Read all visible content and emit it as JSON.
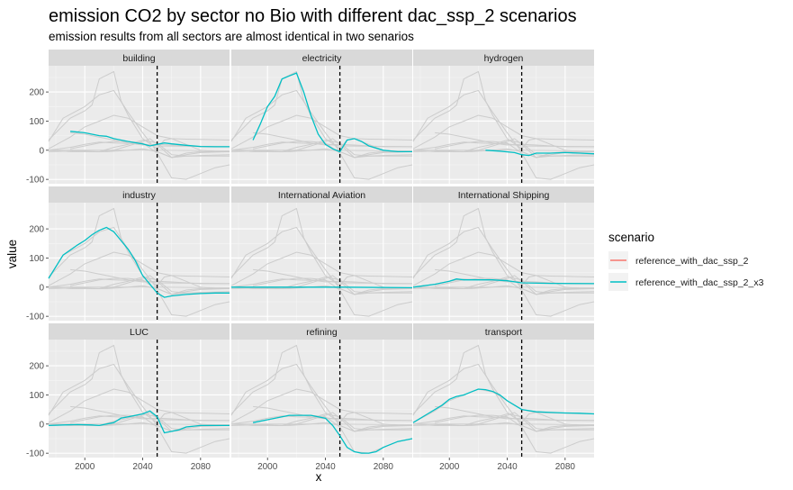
{
  "chart_data": {
    "type": "line",
    "title": "emission CO2 by sector no Bio with different dac_ssp_2 scenarios",
    "subtitle": "emission results from all sectors are almost identical in two senarios",
    "xlabel": "x",
    "ylabel": "value",
    "xlim": [
      1975,
      2100
    ],
    "ylim": [
      -115,
      290
    ],
    "x_ticks": [
      2000,
      2040,
      2080
    ],
    "y_ticks": [
      -100,
      0,
      100,
      200
    ],
    "vline_x": 2050,
    "legend": {
      "title": "scenario",
      "placement": "right",
      "entries": [
        {
          "name": "reference_with_dac_ssp_2",
          "color": "#F8766D"
        },
        {
          "name": "reference_with_dac_ssp_2_x3",
          "color": "#00BFC4"
        }
      ]
    },
    "background_color": "#cccccc",
    "background_lines": [
      [
        [
          1990,
          0
        ],
        [
          2005,
          -5
        ],
        [
          2015,
          -5
        ],
        [
          2030,
          0
        ],
        [
          2040,
          5
        ],
        [
          2050,
          -5
        ],
        [
          2060,
          -25
        ],
        [
          2070,
          -15
        ],
        [
          2080,
          -8
        ],
        [
          2100,
          -5
        ]
      ],
      [
        [
          1975,
          35
        ],
        [
          1990,
          110
        ],
        [
          2000,
          135
        ],
        [
          2005,
          155
        ],
        [
          2010,
          245
        ],
        [
          2020,
          270
        ],
        [
          2025,
          170
        ],
        [
          2030,
          120
        ],
        [
          2040,
          40
        ],
        [
          2050,
          5
        ],
        [
          2055,
          35
        ],
        [
          2060,
          40
        ],
        [
          2070,
          20
        ],
        [
          2080,
          0
        ],
        [
          2090,
          -5
        ],
        [
          2100,
          -5
        ]
      ],
      [
        [
          1975,
          0
        ],
        [
          1990,
          -5
        ],
        [
          2000,
          -5
        ],
        [
          2010,
          -5
        ],
        [
          2020,
          10
        ],
        [
          2030,
          20
        ],
        [
          2040,
          35
        ],
        [
          2050,
          25
        ],
        [
          2060,
          -15
        ],
        [
          2070,
          -20
        ],
        [
          2080,
          -18
        ],
        [
          2100,
          -15
        ]
      ],
      [
        [
          1975,
          30
        ],
        [
          1985,
          110
        ],
        [
          2000,
          150
        ],
        [
          2010,
          190
        ],
        [
          2020,
          205
        ],
        [
          2030,
          130
        ],
        [
          2040,
          60
        ],
        [
          2050,
          -5
        ],
        [
          2060,
          -25
        ],
        [
          2070,
          -20
        ],
        [
          2080,
          -20
        ],
        [
          2100,
          -20
        ]
      ],
      [
        [
          1975,
          0
        ],
        [
          2000,
          0
        ],
        [
          2050,
          0
        ],
        [
          2100,
          -2
        ]
      ],
      [
        [
          1975,
          0
        ],
        [
          1990,
          10
        ],
        [
          2000,
          20
        ],
        [
          2010,
          28
        ],
        [
          2020,
          25
        ],
        [
          2040,
          22
        ],
        [
          2050,
          15
        ],
        [
          2100,
          12
        ]
      ],
      [
        [
          1975,
          -5
        ],
        [
          2000,
          -2
        ],
        [
          2010,
          -5
        ],
        [
          2020,
          0
        ],
        [
          2030,
          15
        ],
        [
          2040,
          30
        ],
        [
          2045,
          40
        ],
        [
          2050,
          20
        ],
        [
          2060,
          -25
        ],
        [
          2070,
          -10
        ],
        [
          2080,
          -5
        ],
        [
          2100,
          -5
        ]
      ],
      [
        [
          1990,
          5
        ],
        [
          2000,
          15
        ],
        [
          2010,
          25
        ],
        [
          2020,
          30
        ],
        [
          2030,
          30
        ],
        [
          2040,
          25
        ],
        [
          2050,
          -10
        ],
        [
          2060,
          -95
        ],
        [
          2070,
          -100
        ],
        [
          2080,
          -80
        ],
        [
          2090,
          -60
        ],
        [
          2100,
          -50
        ]
      ],
      [
        [
          1975,
          5
        ],
        [
          1990,
          45
        ],
        [
          2000,
          80
        ],
        [
          2010,
          100
        ],
        [
          2020,
          120
        ],
        [
          2030,
          110
        ],
        [
          2040,
          80
        ],
        [
          2050,
          50
        ],
        [
          2060,
          40
        ],
        [
          2070,
          38
        ],
        [
          2080,
          37
        ],
        [
          2100,
          35
        ]
      ],
      [
        [
          1990,
          60
        ],
        [
          2000,
          55
        ],
        [
          2010,
          45
        ],
        [
          2020,
          35
        ],
        [
          2030,
          25
        ],
        [
          2040,
          18
        ],
        [
          2050,
          20
        ],
        [
          2060,
          18
        ],
        [
          2070,
          15
        ],
        [
          2080,
          12
        ],
        [
          2100,
          12
        ]
      ]
    ],
    "panels": [
      {
        "name": "building",
        "series": [
          {
            "name": "reference_with_dac_ssp_2_x3",
            "points": [
              [
                1990,
                65
              ],
              [
                2000,
                60
              ],
              [
                2005,
                55
              ],
              [
                2010,
                50
              ],
              [
                2015,
                48
              ],
              [
                2020,
                40
              ],
              [
                2030,
                30
              ],
              [
                2040,
                22
              ],
              [
                2045,
                15
              ],
              [
                2050,
                20
              ],
              [
                2055,
                25
              ],
              [
                2060,
                22
              ],
              [
                2070,
                17
              ],
              [
                2080,
                13
              ],
              [
                2090,
                12
              ],
              [
                2100,
                12
              ]
            ]
          }
        ]
      },
      {
        "name": "electricity",
        "series": [
          {
            "name": "reference_with_dac_ssp_2_x3",
            "points": [
              [
                1990,
                35
              ],
              [
                1995,
                90
              ],
              [
                2000,
                150
              ],
              [
                2005,
                185
              ],
              [
                2010,
                245
              ],
              [
                2015,
                255
              ],
              [
                2020,
                265
              ],
              [
                2025,
                200
              ],
              [
                2030,
                120
              ],
              [
                2035,
                55
              ],
              [
                2040,
                20
              ],
              [
                2045,
                5
              ],
              [
                2050,
                -5
              ],
              [
                2055,
                35
              ],
              [
                2060,
                40
              ],
              [
                2065,
                30
              ],
              [
                2070,
                15
              ],
              [
                2080,
                0
              ],
              [
                2090,
                -5
              ],
              [
                2100,
                -5
              ]
            ]
          }
        ]
      },
      {
        "name": "hydrogen",
        "series": [
          {
            "name": "reference_with_dac_ssp_2_x3",
            "points": [
              [
                2025,
                0
              ],
              [
                2035,
                -3
              ],
              [
                2045,
                -8
              ],
              [
                2050,
                -15
              ],
              [
                2055,
                -18
              ],
              [
                2060,
                -10
              ],
              [
                2070,
                -10
              ],
              [
                2080,
                -8
              ],
              [
                2090,
                -10
              ],
              [
                2100,
                -12
              ]
            ]
          }
        ]
      },
      {
        "name": "industry",
        "series": [
          {
            "name": "reference_with_dac_ssp_2_x3",
            "points": [
              [
                1975,
                30
              ],
              [
                1985,
                110
              ],
              [
                1995,
                145
              ],
              [
                2000,
                160
              ],
              [
                2005,
                180
              ],
              [
                2010,
                195
              ],
              [
                2015,
                205
              ],
              [
                2020,
                190
              ],
              [
                2025,
                160
              ],
              [
                2030,
                130
              ],
              [
                2035,
                90
              ],
              [
                2040,
                40
              ],
              [
                2045,
                10
              ],
              [
                2050,
                -20
              ],
              [
                2055,
                -35
              ],
              [
                2060,
                -30
              ],
              [
                2070,
                -25
              ],
              [
                2080,
                -22
              ],
              [
                2090,
                -20
              ],
              [
                2100,
                -20
              ]
            ]
          }
        ]
      },
      {
        "name": "International Aviation",
        "series": [
          {
            "name": "reference_with_dac_ssp_2_x3",
            "points": [
              [
                1975,
                0
              ],
              [
                2000,
                0
              ],
              [
                2050,
                0
              ],
              [
                2100,
                -2
              ]
            ]
          }
        ]
      },
      {
        "name": "International Shipping",
        "series": [
          {
            "name": "reference_with_dac_ssp_2_x3",
            "points": [
              [
                1975,
                0
              ],
              [
                1990,
                10
              ],
              [
                2000,
                20
              ],
              [
                2005,
                28
              ],
              [
                2010,
                25
              ],
              [
                2020,
                25
              ],
              [
                2030,
                25
              ],
              [
                2040,
                22
              ],
              [
                2050,
                15
              ],
              [
                2070,
                13
              ],
              [
                2100,
                12
              ]
            ]
          }
        ]
      },
      {
        "name": "LUC",
        "series": [
          {
            "name": "reference_with_dac_ssp_2_x3",
            "points": [
              [
                1975,
                -5
              ],
              [
                1985,
                -3
              ],
              [
                1995,
                -2
              ],
              [
                2005,
                -3
              ],
              [
                2010,
                -5
              ],
              [
                2015,
                0
              ],
              [
                2020,
                5
              ],
              [
                2025,
                20
              ],
              [
                2030,
                25
              ],
              [
                2035,
                30
              ],
              [
                2040,
                35
              ],
              [
                2045,
                45
              ],
              [
                2050,
                25
              ],
              [
                2055,
                -30
              ],
              [
                2060,
                -25
              ],
              [
                2065,
                -20
              ],
              [
                2070,
                -10
              ],
              [
                2080,
                -5
              ],
              [
                2090,
                -5
              ],
              [
                2100,
                -5
              ]
            ]
          }
        ]
      },
      {
        "name": "refining",
        "series": [
          {
            "name": "reference_with_dac_ssp_2_x3",
            "points": [
              [
                1990,
                5
              ],
              [
                2000,
                15
              ],
              [
                2010,
                25
              ],
              [
                2015,
                30
              ],
              [
                2020,
                30
              ],
              [
                2030,
                30
              ],
              [
                2040,
                20
              ],
              [
                2045,
                -5
              ],
              [
                2050,
                -40
              ],
              [
                2055,
                -80
              ],
              [
                2060,
                -95
              ],
              [
                2065,
                -100
              ],
              [
                2070,
                -100
              ],
              [
                2075,
                -95
              ],
              [
                2080,
                -80
              ],
              [
                2090,
                -60
              ],
              [
                2100,
                -50
              ]
            ]
          }
        ]
      },
      {
        "name": "transport",
        "series": [
          {
            "name": "reference_with_dac_ssp_2_x3",
            "points": [
              [
                1975,
                5
              ],
              [
                1985,
                35
              ],
              [
                1995,
                65
              ],
              [
                2000,
                85
              ],
              [
                2005,
                95
              ],
              [
                2010,
                100
              ],
              [
                2015,
                110
              ],
              [
                2020,
                120
              ],
              [
                2025,
                118
              ],
              [
                2030,
                112
              ],
              [
                2035,
                100
              ],
              [
                2040,
                80
              ],
              [
                2045,
                65
              ],
              [
                2050,
                50
              ],
              [
                2060,
                42
              ],
              [
                2070,
                40
              ],
              [
                2080,
                38
              ],
              [
                2090,
                37
              ],
              [
                2100,
                35
              ]
            ]
          }
        ]
      }
    ]
  }
}
